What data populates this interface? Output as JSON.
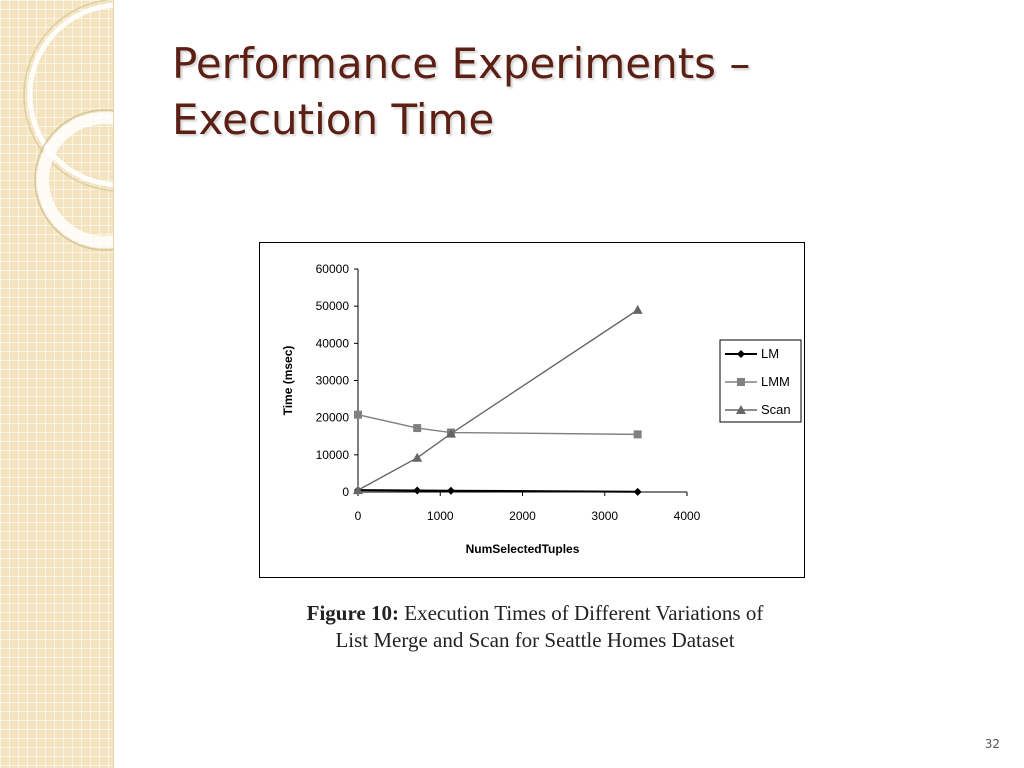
{
  "slide": {
    "title_line1": "Performance Experiments –",
    "title_line2": "Execution Time",
    "page_number": "32",
    "caption_label": "Figure 10:",
    "caption_line1": "Execution Times of Different Variations of",
    "caption_line2": "List Merge and Scan for Seattle Homes Dataset",
    "colors": {
      "title": "#5b1f14",
      "strip": "#f3e4bf"
    }
  },
  "chart_data": {
    "type": "line",
    "title": "",
    "xlabel": "NumSelectedTuples",
    "ylabel": "Time (msec)",
    "xlim": [
      0,
      4000
    ],
    "ylim": [
      0,
      60000
    ],
    "xticks": [
      0,
      1000,
      2000,
      3000,
      4000
    ],
    "yticks": [
      0,
      10000,
      20000,
      30000,
      40000,
      50000,
      60000
    ],
    "grid": false,
    "legend_position": "right",
    "series": [
      {
        "name": "LM",
        "marker": "diamond",
        "color": "#000000",
        "x": [
          0,
          720,
          1130,
          3400
        ],
        "y": [
          500,
          400,
          350,
          50
        ]
      },
      {
        "name": "LMM",
        "marker": "square",
        "color": "#808080",
        "x": [
          0,
          720,
          1130,
          3400
        ],
        "y": [
          20800,
          17200,
          16000,
          15500
        ]
      },
      {
        "name": "Scan",
        "marker": "triangle",
        "color": "#666666",
        "x": [
          0,
          720,
          1130,
          3400
        ],
        "y": [
          500,
          9200,
          15700,
          49000
        ]
      }
    ]
  }
}
